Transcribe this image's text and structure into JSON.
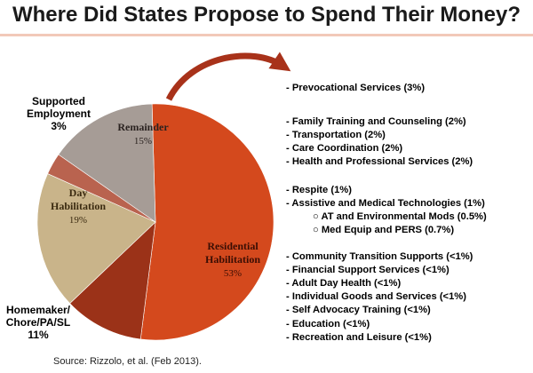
{
  "title": "Where Did States Propose to Spend Their Money?",
  "source": "Source: Rizzolo, et al. (Feb 2013).",
  "chart_data": {
    "type": "pie",
    "title": "Where Did States Propose to Spend Their Money?",
    "slices": [
      {
        "label": "Residential Habilitation",
        "value": 53,
        "display": "53%",
        "color": "#d4491d"
      },
      {
        "label": "Homemaker/ Chore/PA/SL",
        "value": 11,
        "display": "11%",
        "color": "#9b3218"
      },
      {
        "label": "Day Habilitation",
        "value": 19,
        "display": "19%",
        "color": "#c9b48a"
      },
      {
        "label": "Supported Employment",
        "value": 3,
        "display": "3%",
        "color": "#b9634f"
      },
      {
        "label": "Remainder",
        "value": 15,
        "display": "15%",
        "color": "#a69c96"
      }
    ],
    "inside_labels": {
      "residential": [
        "Residential",
        "Habilitation",
        "53%"
      ],
      "day": [
        "Day",
        "Habilitation",
        "19%"
      ],
      "remainder": [
        "Remainder",
        "15%"
      ]
    },
    "outside_labels": {
      "supported": [
        "Supported",
        "Employment",
        "3%"
      ],
      "homemaker": [
        "Homemaker/",
        "Chore/PA/SL",
        "11%"
      ]
    },
    "remainder_breakdown": [
      {
        "text": "- Prevocational Services (3%)"
      },
      {
        "text": "- Family Training and Counseling (2%)"
      },
      {
        "text": "- Transportation (2%)"
      },
      {
        "text": "- Care Coordination (2%)"
      },
      {
        "text": "- Health and Professional Services (2%)"
      },
      {
        "text": "- Respite (1%)"
      },
      {
        "text": "- Assistive and Medical Technologies (1%)"
      },
      {
        "text": "○ AT and Environmental Mods (0.5%)",
        "sub": true
      },
      {
        "text": "○ Med Equip and PERS (0.7%)",
        "sub": true
      },
      {
        "text": "- Community Transition Supports (<1%)"
      },
      {
        "text": "- Financial Support Services (<1%)"
      },
      {
        "text": "- Adult Day Health (<1%)"
      },
      {
        "text": "- Individual Goods and Services (<1%)"
      },
      {
        "text": "- Self Advocacy Training (<1%)"
      },
      {
        "text": "- Education (<1%)"
      },
      {
        "text": "- Recreation and Leisure (<1%)"
      }
    ],
    "arrow_color": "#a8321a"
  }
}
